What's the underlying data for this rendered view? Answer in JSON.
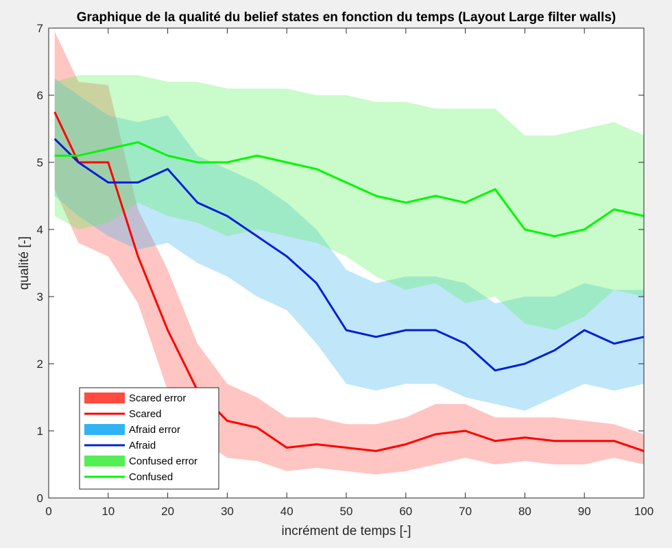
{
  "chart_data": {
    "type": "line",
    "title": "Graphique de la qualité du belief states en fonction du temps (Layout Large filter walls)",
    "xlabel": "incrément de temps [-]",
    "ylabel": "qualité [-]",
    "xlim": [
      0,
      100
    ],
    "ylim": [
      0,
      7
    ],
    "xticks": [
      "0",
      "10",
      "20",
      "30",
      "40",
      "50",
      "60",
      "70",
      "80",
      "90",
      "100"
    ],
    "yticks": [
      "0",
      "1",
      "2",
      "3",
      "4",
      "5",
      "6",
      "7"
    ],
    "grid": false,
    "legend_position": "bottom-left",
    "x": [
      1,
      5,
      10,
      15,
      20,
      25,
      30,
      35,
      40,
      45,
      50,
      55,
      60,
      65,
      70,
      75,
      80,
      85,
      90,
      95,
      100
    ],
    "series": [
      {
        "name": "Scared",
        "error_name": "Scared error",
        "color": "#ff0000",
        "band_color": "#ff4b40",
        "values": [
          5.75,
          5.0,
          5.0,
          3.6,
          2.5,
          1.6,
          1.15,
          1.05,
          0.75,
          0.8,
          0.75,
          0.7,
          0.8,
          0.95,
          1.0,
          0.85,
          0.9,
          0.85,
          0.85,
          0.85,
          0.7
        ],
        "upper": [
          6.95,
          6.2,
          6.15,
          4.3,
          3.4,
          2.3,
          1.7,
          1.5,
          1.2,
          1.2,
          1.1,
          1.1,
          1.2,
          1.4,
          1.4,
          1.2,
          1.2,
          1.2,
          1.15,
          1.1,
          0.95
        ],
        "lower": [
          4.6,
          3.8,
          3.6,
          2.9,
          1.6,
          0.9,
          0.6,
          0.55,
          0.4,
          0.45,
          0.4,
          0.35,
          0.4,
          0.5,
          0.6,
          0.5,
          0.55,
          0.5,
          0.5,
          0.6,
          0.5
        ]
      },
      {
        "name": "Afraid",
        "error_name": "Afraid error",
        "color": "#0020d6",
        "band_color": "#3ab2ee",
        "values": [
          5.35,
          5.0,
          4.7,
          4.7,
          4.9,
          4.4,
          4.2,
          3.9,
          3.6,
          3.2,
          2.5,
          2.4,
          2.5,
          2.5,
          2.3,
          1.9,
          2.0,
          2.2,
          2.5,
          2.3,
          2.4
        ],
        "upper": [
          6.25,
          6.0,
          5.7,
          5.6,
          5.7,
          5.1,
          4.9,
          4.7,
          4.4,
          4.0,
          3.4,
          3.2,
          3.3,
          3.3,
          3.2,
          2.9,
          3.0,
          3.0,
          3.2,
          3.1,
          3.1
        ],
        "lower": [
          4.5,
          4.2,
          3.9,
          3.7,
          3.8,
          3.5,
          3.3,
          3.0,
          2.8,
          2.3,
          1.7,
          1.6,
          1.7,
          1.7,
          1.5,
          1.4,
          1.3,
          1.5,
          1.7,
          1.6,
          1.7
        ]
      },
      {
        "name": "Confused",
        "error_name": "Confused error",
        "color": "#00f700",
        "band_color": "#5af25a",
        "values": [
          5.1,
          5.1,
          5.2,
          5.3,
          5.1,
          5.0,
          5.0,
          5.1,
          5.0,
          4.9,
          4.7,
          4.5,
          4.4,
          4.5,
          4.4,
          4.6,
          4.0,
          3.9,
          4.0,
          4.3,
          4.2
        ],
        "upper": [
          6.2,
          6.3,
          6.3,
          6.3,
          6.2,
          6.2,
          6.1,
          6.1,
          6.1,
          6.0,
          6.0,
          5.9,
          5.9,
          5.8,
          5.8,
          5.8,
          5.4,
          5.4,
          5.5,
          5.6,
          5.4
        ],
        "lower": [
          4.2,
          4.0,
          4.1,
          4.4,
          4.2,
          4.1,
          3.9,
          4.0,
          3.9,
          3.8,
          3.6,
          3.3,
          3.1,
          3.2,
          2.9,
          3.0,
          2.6,
          2.5,
          2.7,
          3.1,
          3.0
        ]
      }
    ],
    "legend": [
      {
        "label": "Scared error",
        "kind": "patch",
        "color": "#ff4b40"
      },
      {
        "label": "Scared",
        "kind": "line",
        "color": "#ff0000"
      },
      {
        "label": "Afraid error",
        "kind": "patch",
        "color": "#30b4f5"
      },
      {
        "label": "Afraid",
        "kind": "line",
        "color": "#0020d6"
      },
      {
        "label": "Confused error",
        "kind": "patch",
        "color": "#55ee55"
      },
      {
        "label": "Confused",
        "kind": "line",
        "color": "#00f700"
      }
    ]
  }
}
